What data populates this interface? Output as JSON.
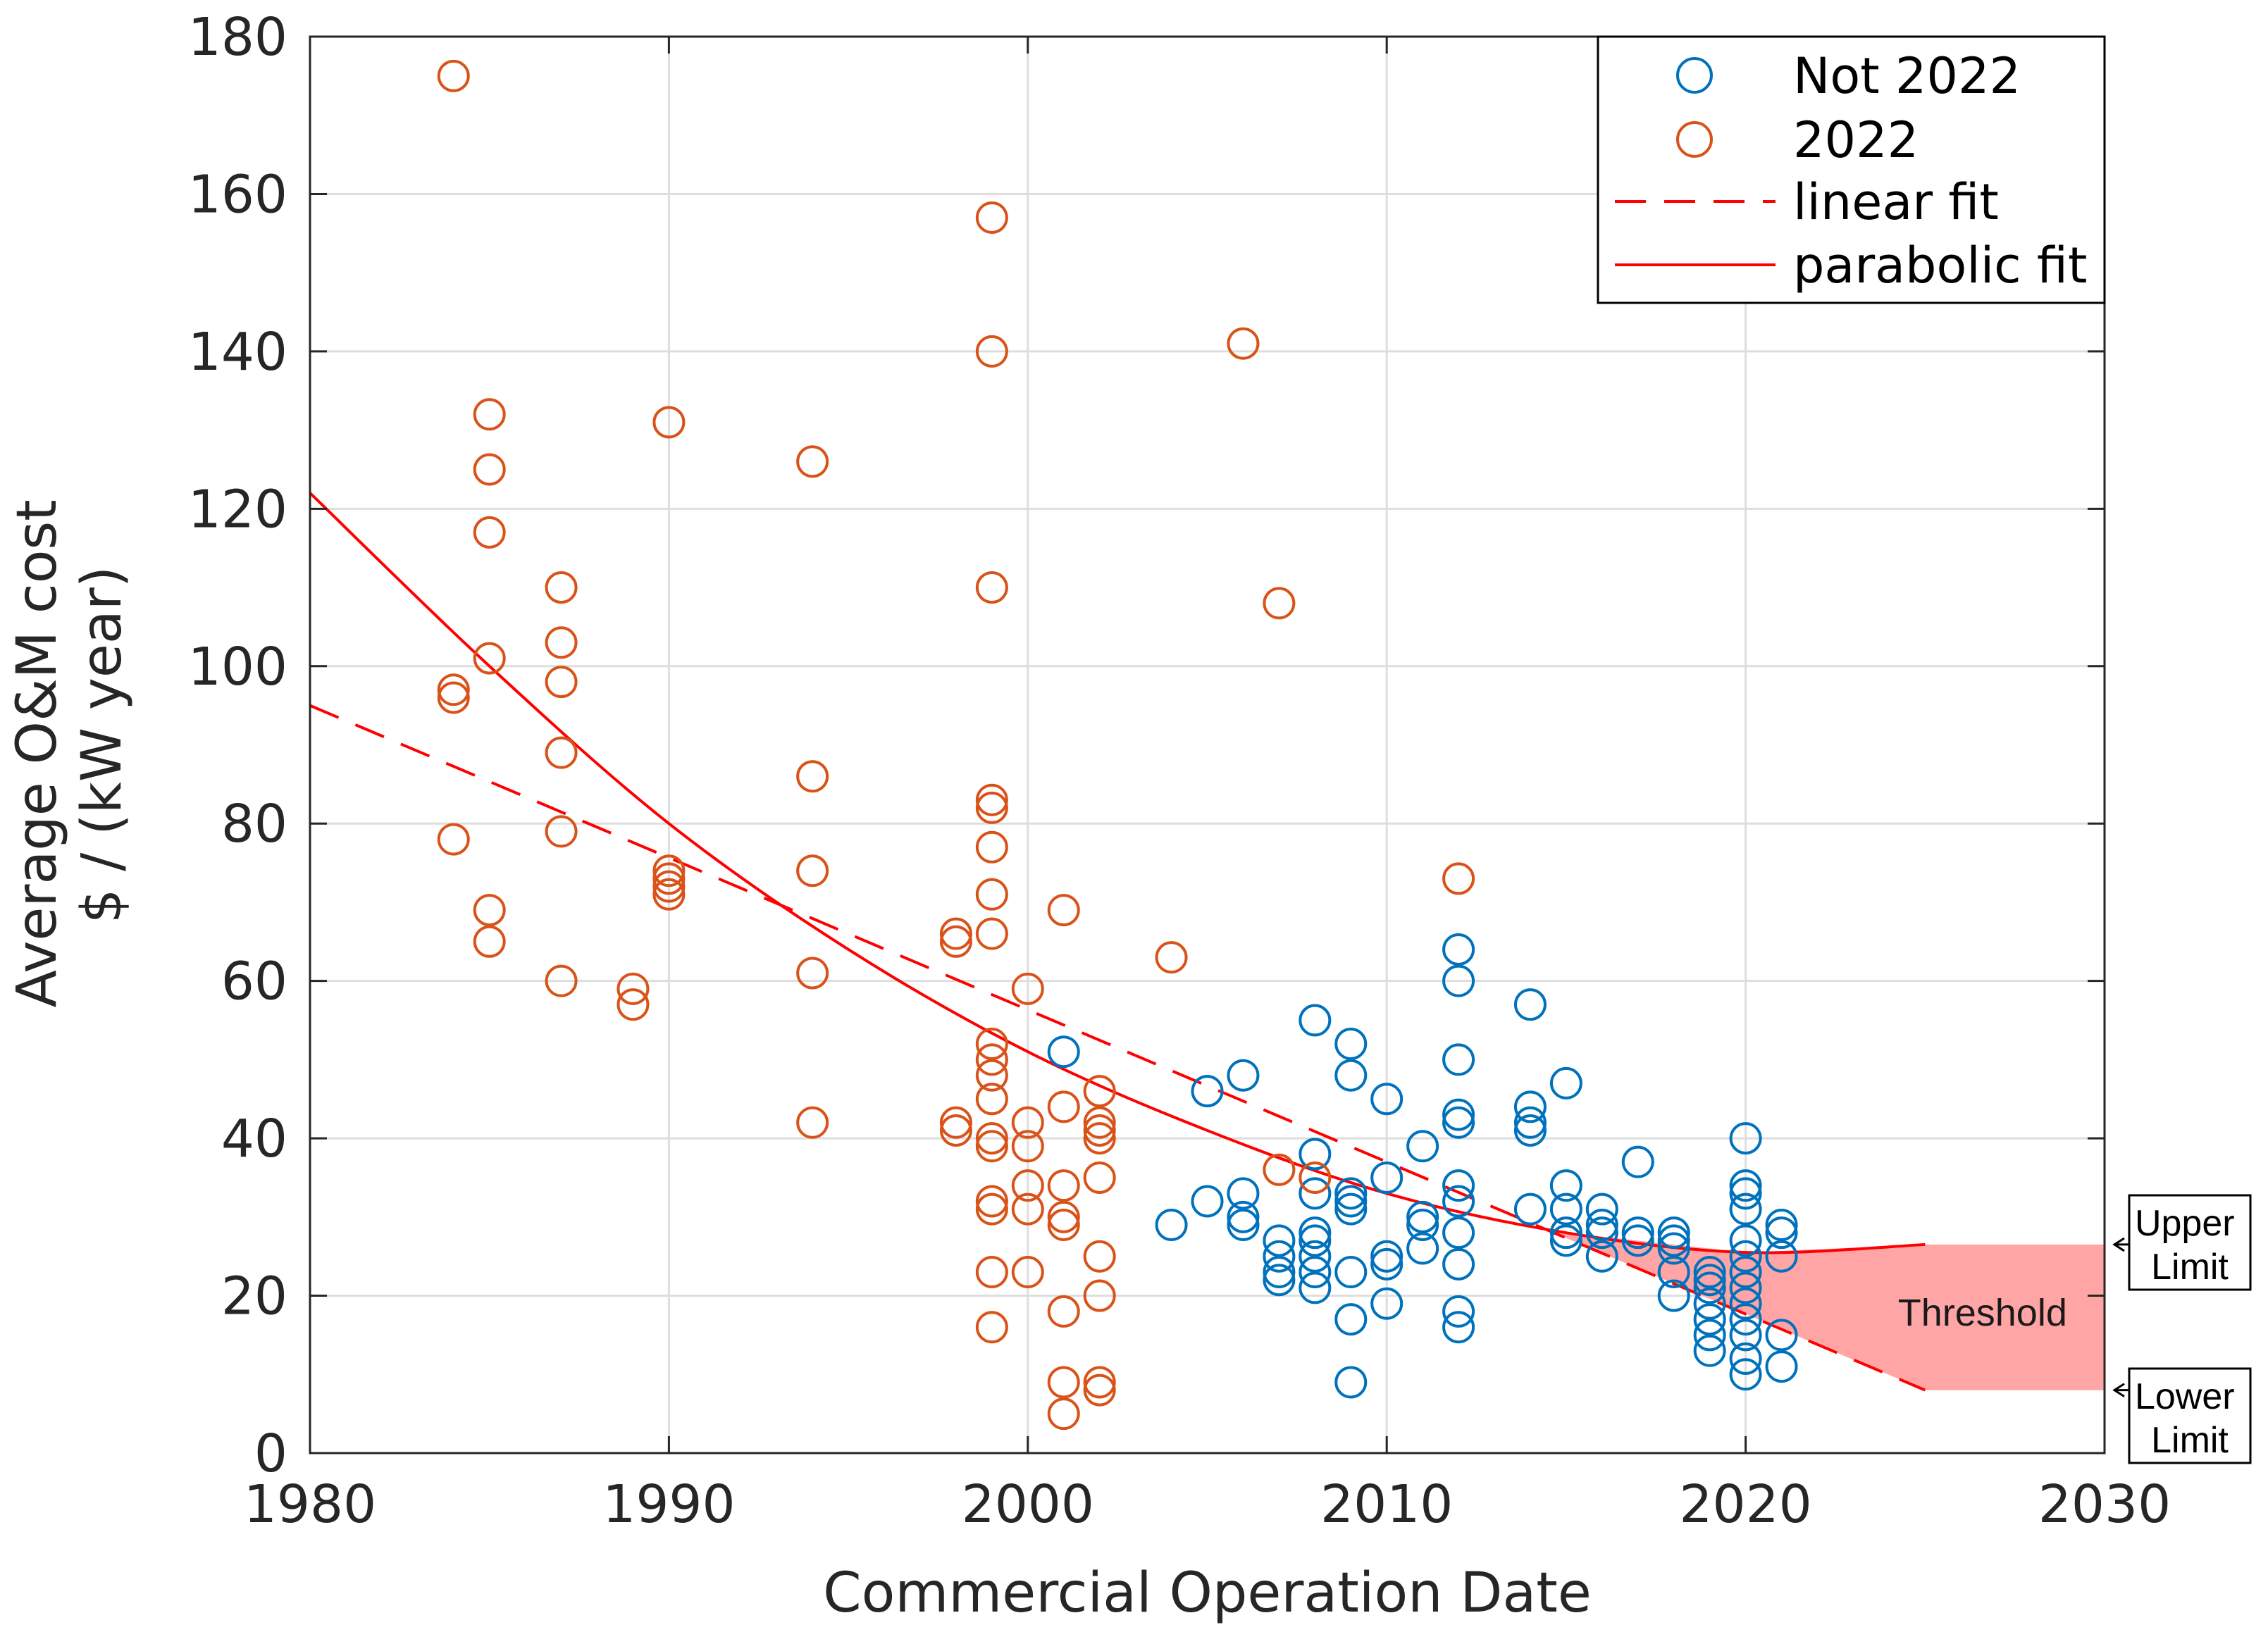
{
  "chart_data": {
    "type": "scatter",
    "xlabel": "Commercial Operation Date",
    "ylabel_lines": [
      "Average O&M cost",
      "$ / (kW year)"
    ],
    "xlim": [
      1980,
      2030
    ],
    "ylim": [
      0,
      180
    ],
    "xticks": [
      1980,
      1990,
      2000,
      2010,
      2020,
      2030
    ],
    "yticks": [
      0,
      20,
      40,
      60,
      80,
      100,
      120,
      140,
      160,
      180
    ],
    "grid": true,
    "legend_position": "top-right",
    "colors": {
      "not_2022": "#0072BD",
      "y2022": "#D95319",
      "fit": "#FF0000",
      "threshold_fill": "#FFA5A5"
    },
    "series": [
      {
        "name": "Not 2022",
        "points": [
          [
            2001,
            51
          ],
          [
            2004,
            29
          ],
          [
            2005,
            46
          ],
          [
            2005,
            32
          ],
          [
            2006,
            48
          ],
          [
            2006,
            33
          ],
          [
            2006,
            30
          ],
          [
            2006,
            29
          ],
          [
            2007,
            27
          ],
          [
            2007,
            25
          ],
          [
            2007,
            23
          ],
          [
            2007,
            22
          ],
          [
            2008,
            55
          ],
          [
            2008,
            38
          ],
          [
            2008,
            33
          ],
          [
            2008,
            28
          ],
          [
            2008,
            27
          ],
          [
            2008,
            25
          ],
          [
            2008,
            23
          ],
          [
            2008,
            21
          ],
          [
            2009,
            52
          ],
          [
            2009,
            48
          ],
          [
            2009,
            33
          ],
          [
            2009,
            32
          ],
          [
            2009,
            31
          ],
          [
            2009,
            23
          ],
          [
            2009,
            17
          ],
          [
            2009,
            9
          ],
          [
            2010,
            45
          ],
          [
            2010,
            35
          ],
          [
            2010,
            25
          ],
          [
            2010,
            24
          ],
          [
            2010,
            19
          ],
          [
            2011,
            39
          ],
          [
            2011,
            30
          ],
          [
            2011,
            29
          ],
          [
            2011,
            26
          ],
          [
            2012,
            64
          ],
          [
            2012,
            60
          ],
          [
            2012,
            50
          ],
          [
            2012,
            43
          ],
          [
            2012,
            42
          ],
          [
            2012,
            34
          ],
          [
            2012,
            32
          ],
          [
            2012,
            28
          ],
          [
            2012,
            24
          ],
          [
            2012,
            18
          ],
          [
            2012,
            16
          ],
          [
            2014,
            57
          ],
          [
            2014,
            44
          ],
          [
            2014,
            42
          ],
          [
            2014,
            41
          ],
          [
            2014,
            31
          ],
          [
            2015,
            47
          ],
          [
            2015,
            34
          ],
          [
            2015,
            31
          ],
          [
            2015,
            28
          ],
          [
            2015,
            27
          ],
          [
            2016,
            31
          ],
          [
            2016,
            29
          ],
          [
            2016,
            28
          ],
          [
            2016,
            25
          ],
          [
            2017,
            37
          ],
          [
            2017,
            28
          ],
          [
            2017,
            27
          ],
          [
            2018,
            28
          ],
          [
            2018,
            27
          ],
          [
            2018,
            26
          ],
          [
            2018,
            23
          ],
          [
            2018,
            20
          ],
          [
            2019,
            23
          ],
          [
            2019,
            22
          ],
          [
            2019,
            21
          ],
          [
            2019,
            19
          ],
          [
            2019,
            17
          ],
          [
            2019,
            15
          ],
          [
            2019,
            13
          ],
          [
            2020,
            40
          ],
          [
            2020,
            34
          ],
          [
            2020,
            33
          ],
          [
            2020,
            31
          ],
          [
            2020,
            27
          ],
          [
            2020,
            25
          ],
          [
            2020,
            23
          ],
          [
            2020,
            21
          ],
          [
            2020,
            19
          ],
          [
            2020,
            17
          ],
          [
            2020,
            15
          ],
          [
            2020,
            12
          ],
          [
            2020,
            10
          ],
          [
            2021,
            29
          ],
          [
            2021,
            28
          ],
          [
            2021,
            25
          ],
          [
            2021,
            15
          ],
          [
            2021,
            11
          ]
        ]
      },
      {
        "name": "2022",
        "points": [
          [
            1984,
            175
          ],
          [
            1984,
            97
          ],
          [
            1984,
            96
          ],
          [
            1984,
            78
          ],
          [
            1985,
            132
          ],
          [
            1985,
            125
          ],
          [
            1985,
            117
          ],
          [
            1985,
            101
          ],
          [
            1985,
            69
          ],
          [
            1985,
            65
          ],
          [
            1987,
            110
          ],
          [
            1987,
            103
          ],
          [
            1987,
            98
          ],
          [
            1987,
            89
          ],
          [
            1987,
            79
          ],
          [
            1987,
            60
          ],
          [
            1989,
            59
          ],
          [
            1989,
            57
          ],
          [
            1990,
            131
          ],
          [
            1990,
            74
          ],
          [
            1990,
            73
          ],
          [
            1990,
            72
          ],
          [
            1990,
            71
          ],
          [
            1994,
            126
          ],
          [
            1994,
            86
          ],
          [
            1994,
            74
          ],
          [
            1994,
            61
          ],
          [
            1994,
            42
          ],
          [
            1998,
            66
          ],
          [
            1998,
            65
          ],
          [
            1998,
            42
          ],
          [
            1998,
            41
          ],
          [
            1999,
            157
          ],
          [
            1999,
            140
          ],
          [
            1999,
            110
          ],
          [
            1999,
            83
          ],
          [
            1999,
            82
          ],
          [
            1999,
            77
          ],
          [
            1999,
            71
          ],
          [
            1999,
            66
          ],
          [
            1999,
            52
          ],
          [
            1999,
            50
          ],
          [
            1999,
            48
          ],
          [
            1999,
            45
          ],
          [
            1999,
            40
          ],
          [
            1999,
            39
          ],
          [
            1999,
            32
          ],
          [
            1999,
            31
          ],
          [
            1999,
            23
          ],
          [
            1999,
            16
          ],
          [
            2000,
            59
          ],
          [
            2000,
            42
          ],
          [
            2000,
            39
          ],
          [
            2000,
            34
          ],
          [
            2000,
            31
          ],
          [
            2000,
            23
          ],
          [
            2001,
            69
          ],
          [
            2001,
            44
          ],
          [
            2001,
            34
          ],
          [
            2001,
            30
          ],
          [
            2001,
            29
          ],
          [
            2001,
            18
          ],
          [
            2001,
            9
          ],
          [
            2001,
            5
          ],
          [
            2002,
            46
          ],
          [
            2002,
            42
          ],
          [
            2002,
            41
          ],
          [
            2002,
            40
          ],
          [
            2002,
            35
          ],
          [
            2002,
            25
          ],
          [
            2002,
            20
          ],
          [
            2002,
            9
          ],
          [
            2002,
            8
          ],
          [
            2004,
            63
          ],
          [
            2006,
            141
          ],
          [
            2007,
            108
          ],
          [
            2007,
            36
          ],
          [
            2008,
            35
          ],
          [
            2012,
            73
          ]
        ]
      }
    ],
    "fits": {
      "linear": {
        "name": "linear fit",
        "style": "dashed",
        "points": [
          [
            1980,
            95
          ],
          [
            2025,
            8
          ]
        ]
      },
      "parabolic": {
        "name": "parabolic fit",
        "style": "solid",
        "points": [
          [
            1980,
            122
          ],
          [
            1985,
            100
          ],
          [
            1990,
            80
          ],
          [
            1995,
            64
          ],
          [
            2000,
            51
          ],
          [
            2005,
            41
          ],
          [
            2010,
            33
          ],
          [
            2015,
            28
          ],
          [
            2020,
            25.5
          ],
          [
            2025,
            26.5
          ]
        ]
      }
    },
    "threshold": {
      "label": "Threshold",
      "x_end": 2030,
      "upper_value": 26.5,
      "lower_value": 8,
      "upper_label_lines": [
        "Upper",
        "Limit"
      ],
      "lower_label_lines": [
        "Lower",
        "Limit"
      ]
    }
  }
}
